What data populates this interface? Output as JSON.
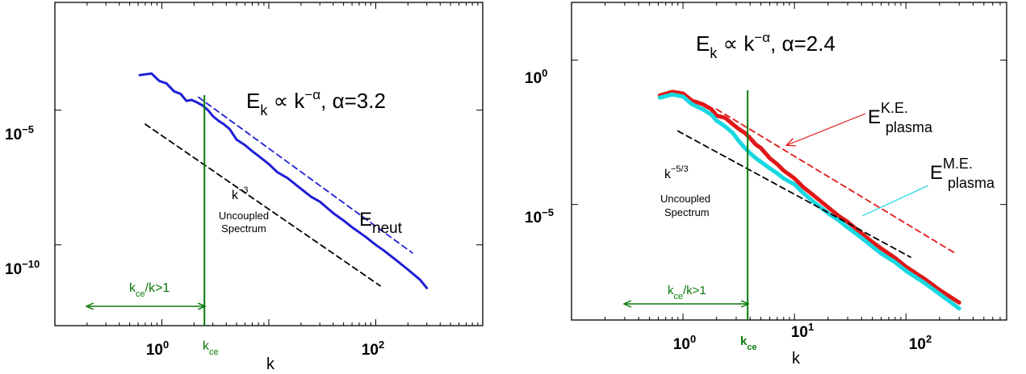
{
  "chart_data": [
    {
      "type": "line",
      "xscale": "log",
      "yscale": "log",
      "xlim": [
        0.1,
        1000
      ],
      "ylim": [
        1e-13,
        0.1
      ],
      "xticks": [
        {
          "v": 1,
          "label": "10",
          "exp": "0"
        },
        {
          "v": 100,
          "label": "10",
          "exp": "2"
        }
      ],
      "yticks": [
        {
          "v": 1e-05,
          "label": "10",
          "exp": "−5"
        },
        {
          "v": 1e-10,
          "label": "10",
          "exp": "−10"
        }
      ],
      "xlabel": "k",
      "series": [
        {
          "name": "E_neut",
          "color": "#1f1fd6",
          "style": "solid",
          "x": [
            0.62,
            0.8,
            0.95,
            1.1,
            1.3,
            1.5,
            1.7,
            1.9,
            2.1,
            2.4,
            2.7,
            3.0,
            3.4,
            3.8,
            4.3,
            5,
            6,
            7,
            8,
            10,
            12,
            15,
            20,
            25,
            30,
            40,
            50,
            60,
            80,
            100,
            120,
            150,
            200,
            260,
            300
          ],
          "y": [
            0.0002,
            0.00023,
            0.00012,
            0.0001,
            5e-05,
            4e-05,
            2.2e-05,
            2.4e-05,
            2e-05,
            1.5e-05,
            1e-05,
            6e-06,
            4e-06,
            3e-06,
            2e-06,
            8e-07,
            5e-07,
            3e-07,
            2e-07,
            1e-07,
            5e-08,
            3e-08,
            1.2e-08,
            6e-09,
            4e-09,
            1.5e-09,
            8e-10,
            4.5e-10,
            2e-10,
            1e-10,
            6e-11,
            3e-11,
            1.2e-11,
            5e-12,
            2.5e-12
          ]
        },
        {
          "name": "fit",
          "color": "#1f1fd6",
          "style": "dashed",
          "x": [
            2.2,
            220
          ],
          "y": [
            3e-05,
            5e-11
          ]
        },
        {
          "name": "k^-3",
          "color": "#000000",
          "style": "dashed",
          "x": [
            0.7,
            110
          ],
          "y": [
            3e-06,
            3e-12
          ]
        }
      ],
      "vline": {
        "x": 2.5,
        "color": "#0b7a0b"
      },
      "arrow": {
        "x1": 0.2,
        "x2": 2.5,
        "y": 1e-12,
        "color": "#0b7a0b"
      },
      "annotations": {
        "formula_lhs": "E",
        "formula_sub": "k",
        "formula_mid": " ∝ k",
        "formula_sup": "−α",
        "formula_rhs": ", α=3.2",
        "spectrum_base": "k",
        "spectrum_sup": "−3",
        "uncoupled_1": "Uncoupled",
        "uncoupled_2": "Spectrum",
        "eneut_base": "E",
        "eneut_sub": "neut",
        "kce_k": "k",
        "kce_sub": "ce",
        "arrow_k": "k",
        "arrow_sub": "ce",
        "arrow_rest": "/k>1"
      }
    },
    {
      "type": "line",
      "xscale": "log",
      "yscale": "log",
      "xlim": [
        0.1,
        800
      ],
      "ylim": [
        1e-09,
        100.0
      ],
      "xticks": [
        {
          "v": 1,
          "label": "10",
          "exp": "0"
        },
        {
          "v": 10,
          "label": "10",
          "exp": "1"
        },
        {
          "v": 100,
          "label": "10",
          "exp": "2"
        }
      ],
      "yticks": [
        {
          "v": 1,
          "label": "10",
          "exp": "0"
        },
        {
          "v": 1e-05,
          "label": "10",
          "exp": "−5"
        }
      ],
      "xlabel": "k",
      "series": [
        {
          "name": "E_plasma K.E.",
          "color": "#e01818",
          "style": "solid",
          "x": [
            0.62,
            0.8,
            1.0,
            1.2,
            1.5,
            1.8,
            2.0,
            2.4,
            2.8,
            3.2,
            3.6,
            4.0,
            4.5,
            5,
            6,
            7,
            8,
            10,
            12,
            15,
            20,
            25,
            30,
            40,
            50,
            60,
            80,
            100,
            150,
            200,
            300
          ],
          "y": [
            0.06,
            0.08,
            0.07,
            0.04,
            0.03,
            0.02,
            0.012,
            0.01,
            0.006,
            0.004,
            0.003,
            0.002,
            0.0012,
            0.0009,
            0.0004,
            0.00025,
            0.00015,
            8e-05,
            4e-05,
            2e-05,
            8e-06,
            4e-06,
            2.5e-06,
            1e-06,
            5e-07,
            3e-07,
            1.4e-07,
            7e-08,
            2.5e-08,
            1.1e-08,
            4e-09
          ]
        },
        {
          "name": "E_plasma M.E.",
          "color": "#18d8e0",
          "style": "solid",
          "x": [
            0.62,
            0.8,
            1.0,
            1.2,
            1.5,
            1.8,
            2.0,
            2.4,
            2.8,
            3.2,
            3.6,
            4.0,
            4.5,
            5,
            6,
            7,
            8,
            10,
            12,
            15,
            20,
            25,
            30,
            40,
            50,
            60,
            80,
            100,
            150,
            200,
            300
          ],
          "y": [
            0.05,
            0.065,
            0.055,
            0.03,
            0.02,
            0.013,
            0.008,
            0.005,
            0.003,
            0.0015,
            0.0009,
            0.0006,
            0.0004,
            0.0003,
            0.00018,
            0.00012,
            8e-05,
            5e-05,
            2.5e-05,
            1.2e-05,
            5e-06,
            2.8e-06,
            1.6e-06,
            7e-07,
            3.5e-07,
            2e-07,
            1e-07,
            5e-08,
            1.8e-08,
            8e-09,
            2.5e-09
          ]
        },
        {
          "name": "fit",
          "color": "#e01818",
          "style": "dashed",
          "x": [
            2.0,
            280
          ],
          "y": [
            0.02,
            2e-07
          ]
        },
        {
          "name": "k^-5/3",
          "color": "#000000",
          "style": "dashed",
          "x": [
            0.9,
            110
          ],
          "y": [
            0.0035,
            1.5e-07
          ]
        }
      ],
      "vline": {
        "x": 3.8,
        "color": "#0b7a0b"
      },
      "arrow": {
        "x1": 0.3,
        "x2": 3.8,
        "y": 1.2e-08,
        "color": "#0b7a0b"
      },
      "pointers": [
        {
          "from": [
            20,
            0.012
          ],
          "to": [
            5,
            0.0007
          ],
          "color": "#e01818"
        },
        {
          "from": [
            85,
            4e-05
          ],
          "to": [
            35,
            3e-06
          ],
          "color": "#18d8e0"
        }
      ],
      "annotations": {
        "formula_lhs": "E",
        "formula_sub": "k",
        "formula_mid": " ∝ k",
        "formula_sup": "−α",
        "formula_rhs": ", α=2.4",
        "spectrum_base": "k",
        "spectrum_sup": "−5/3",
        "uncoupled_1": "Uncoupled",
        "uncoupled_2": "Spectrum",
        "ke_base": "E",
        "ke_sup": "K.E.",
        "ke_sub": "plasma",
        "me_base": "E",
        "me_sup": "M.E.",
        "me_sub": "plasma",
        "kce_k": "k",
        "kce_sub": "ce",
        "arrow_k": "k",
        "arrow_sub": "ce",
        "arrow_rest": "/k>1"
      }
    }
  ]
}
